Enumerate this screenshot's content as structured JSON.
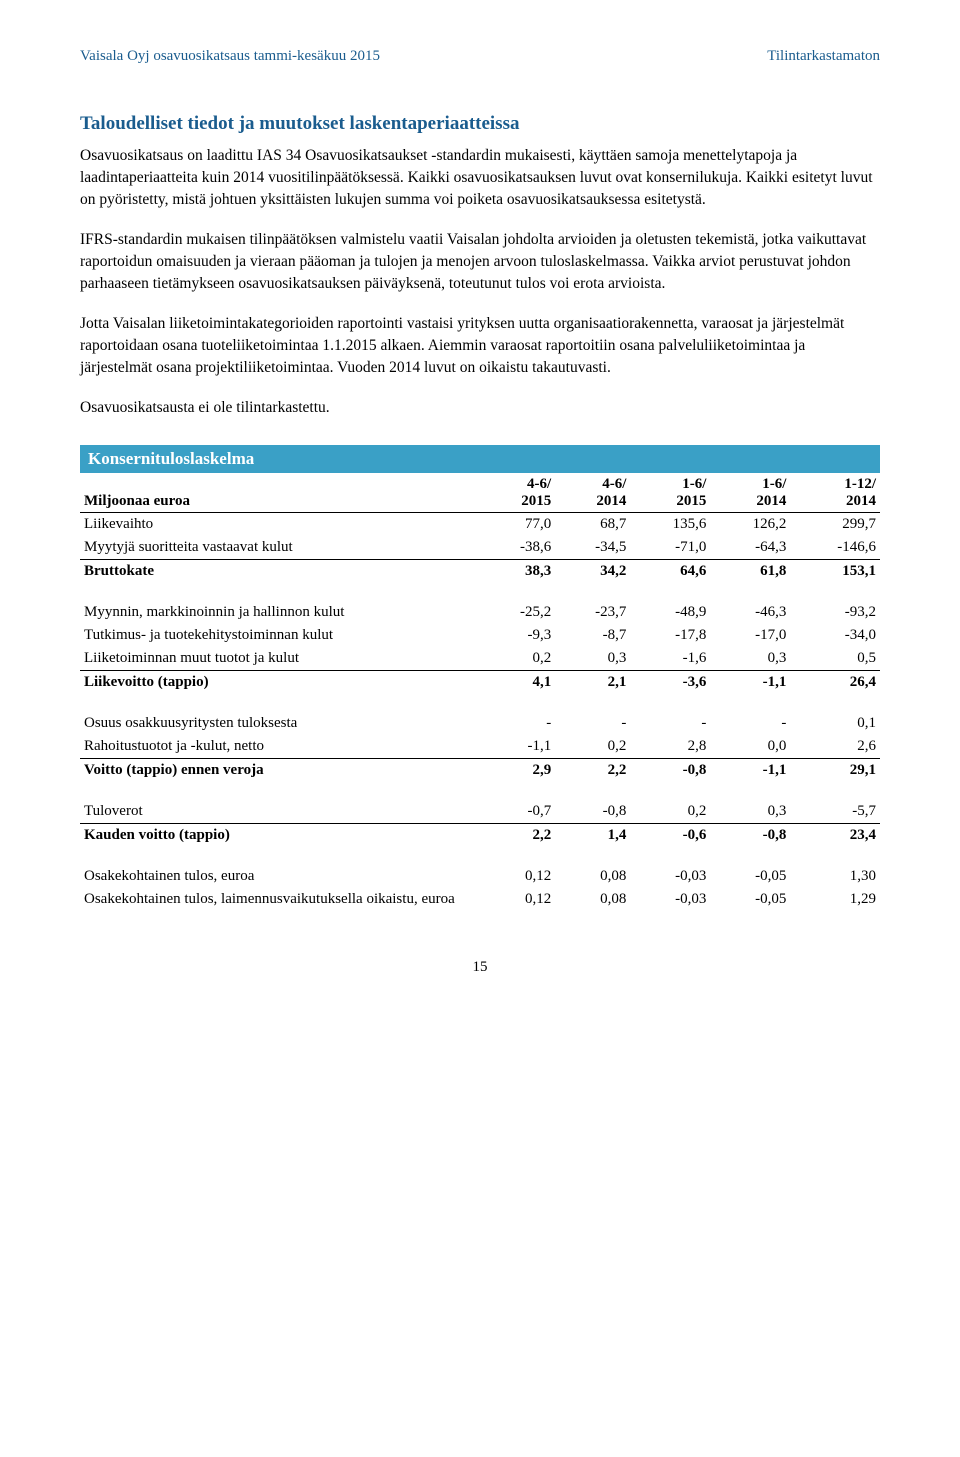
{
  "header": {
    "left": "Vaisala Oyj osavuosikatsaus tammi-kesäkuu 2015",
    "right": "Tilintarkastamaton"
  },
  "title": "Taloudelliset tiedot ja muutokset laskentaperiaatteissa",
  "paragraphs": {
    "p1": "Osavuosikatsaus on laadittu IAS 34 Osavuosikatsaukset -standardin mukaisesti, käyttäen samoja menettelytapoja ja laadintaperiaatteita kuin 2014 vuositilinpäätöksessä. Kaikki osavuosikatsauksen luvut ovat konsernilukuja. Kaikki esitetyt luvut on pyöristetty, mistä johtuen yksittäisten lukujen summa voi poiketa osavuosikatsauksessa esitetystä.",
    "p2": "IFRS-standardin mukaisen tilinpäätöksen valmistelu vaatii Vaisalan johdolta arvioiden ja oletusten tekemistä, jotka vaikuttavat raportoidun omaisuuden ja vieraan pääoman ja tulojen ja menojen arvoon tuloslaskelmassa. Vaikka arviot perustuvat johdon parhaaseen tietämykseen osavuosikatsauksen päiväyksenä, toteutunut tulos voi erota arvioista.",
    "p3": "Jotta Vaisalan liiketoimintakategorioiden raportointi vastaisi yrityksen uutta organisaatiorakennetta, varaosat ja järjestelmät raportoidaan osana tuoteliiketoimintaa 1.1.2015 alkaen. Aiemmin varaosat raportoitiin osana palveluliiketoimintaa ja järjestelmät osana projektiliiketoimintaa. Vuoden 2014 luvut on oikaistu takautuvasti.",
    "p4": "Osavuosikatsausta ei ole tilintarkastettu."
  },
  "table": {
    "section_title": "Konsernituloslaskelma",
    "columns": {
      "label": "Miljoonaa euroa",
      "c1a": "4-6/",
      "c1b": "2015",
      "c2a": "4-6/",
      "c2b": "2014",
      "c3a": "1-6/",
      "c3b": "2015",
      "c4a": "1-6/",
      "c4b": "2014",
      "c5a": "1-12/",
      "c5b": "2014"
    },
    "rows": {
      "r0": {
        "label": "Liikevaihto",
        "v": [
          "77,0",
          "68,7",
          "135,6",
          "126,2",
          "299,7"
        ]
      },
      "r1": {
        "label": "Myytyjä suoritteita vastaavat kulut",
        "v": [
          "-38,6",
          "-34,5",
          "-71,0",
          "-64,3",
          "-146,6"
        ]
      },
      "r2": {
        "label": "Bruttokate",
        "v": [
          "38,3",
          "34,2",
          "64,6",
          "61,8",
          "153,1"
        ]
      },
      "r3": {
        "label": "Myynnin, markkinoinnin ja hallinnon kulut",
        "v": [
          "-25,2",
          "-23,7",
          "-48,9",
          "-46,3",
          "-93,2"
        ]
      },
      "r4": {
        "label": "Tutkimus- ja tuotekehitystoiminnan kulut",
        "v": [
          "-9,3",
          "-8,7",
          "-17,8",
          "-17,0",
          "-34,0"
        ]
      },
      "r5": {
        "label": "Liiketoiminnan muut tuotot ja kulut",
        "v": [
          "0,2",
          "0,3",
          "-1,6",
          "0,3",
          "0,5"
        ]
      },
      "r6": {
        "label": "Liikevoitto (tappio)",
        "v": [
          "4,1",
          "2,1",
          "-3,6",
          "-1,1",
          "26,4"
        ]
      },
      "r7": {
        "label": "Osuus osakkuusyritysten tuloksesta",
        "v": [
          "-",
          "-",
          "-",
          "-",
          "0,1"
        ]
      },
      "r8": {
        "label": "Rahoitustuotot ja -kulut, netto",
        "v": [
          "-1,1",
          "0,2",
          "2,8",
          "0,0",
          "2,6"
        ]
      },
      "r9": {
        "label": "Voitto (tappio) ennen veroja",
        "v": [
          "2,9",
          "2,2",
          "-0,8",
          "-1,1",
          "29,1"
        ]
      },
      "r10": {
        "label": "Tuloverot",
        "v": [
          "-0,7",
          "-0,8",
          "0,2",
          "0,3",
          "-5,7"
        ]
      },
      "r11": {
        "label": "Kauden voitto (tappio)",
        "v": [
          "2,2",
          "1,4",
          "-0,6",
          "-0,8",
          "23,4"
        ]
      },
      "r12": {
        "label": "Osakekohtainen tulos, euroa",
        "v": [
          "0,12",
          "0,08",
          "-0,03",
          "-0,05",
          "1,30"
        ]
      },
      "r13": {
        "label": "Osakekohtainen tulos, laimennusvaikutuksella oikaistu, euroa",
        "v": [
          "0,12",
          "0,08",
          "-0,03",
          "-0,05",
          "1,29"
        ]
      }
    }
  },
  "page_number": "15"
}
